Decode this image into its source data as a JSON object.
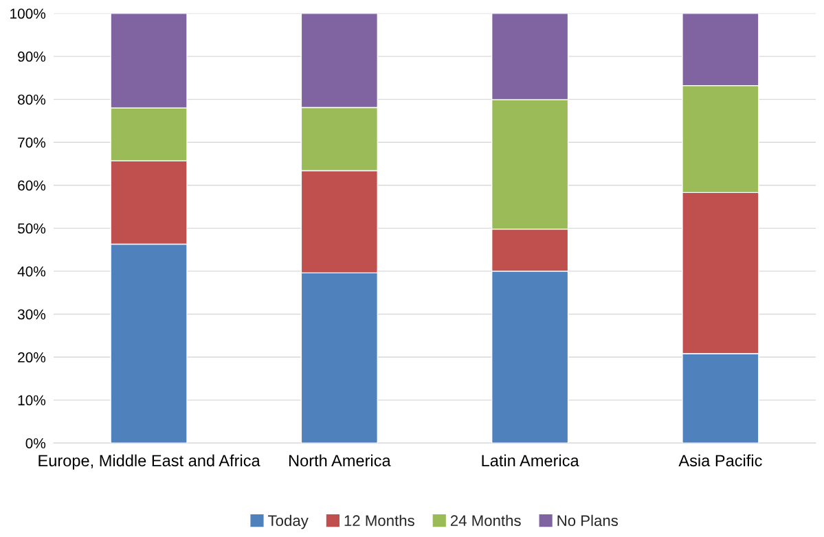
{
  "chart_data": {
    "type": "bar",
    "stacked": true,
    "categories": [
      "Europe, Middle East and Africa",
      "North America",
      "Latin America",
      "Asia Pacific"
    ],
    "series": [
      {
        "name": "Today",
        "color": "#4f81bd",
        "values": [
          46.3,
          39.6,
          40,
          20.8
        ]
      },
      {
        "name": "12 Months",
        "color": "#c0504d",
        "values": [
          19.4,
          23.8,
          9.8,
          37.5
        ]
      },
      {
        "name": "24 Months",
        "color": "#9bbb59",
        "values": [
          12.3,
          14.7,
          30.1,
          24.9
        ]
      },
      {
        "name": "No Plans",
        "color": "#8064a2",
        "values": [
          22,
          21.9,
          20.1,
          16.8
        ]
      }
    ],
    "ylim": [
      0,
      100
    ],
    "yticks": [
      {
        "value": 0,
        "label": "0%"
      },
      {
        "value": 10,
        "label": "10%"
      },
      {
        "value": 20,
        "label": "20%"
      },
      {
        "value": 30,
        "label": "30%"
      },
      {
        "value": 40,
        "label": "40%"
      },
      {
        "value": 50,
        "label": "50%"
      },
      {
        "value": 60,
        "label": "60%"
      },
      {
        "value": 70,
        "label": "70%"
      },
      {
        "value": 80,
        "label": "80%"
      },
      {
        "value": 90,
        "label": "90%"
      },
      {
        "value": 100,
        "label": "100%"
      }
    ],
    "grid": "y",
    "legend": "bottom"
  }
}
